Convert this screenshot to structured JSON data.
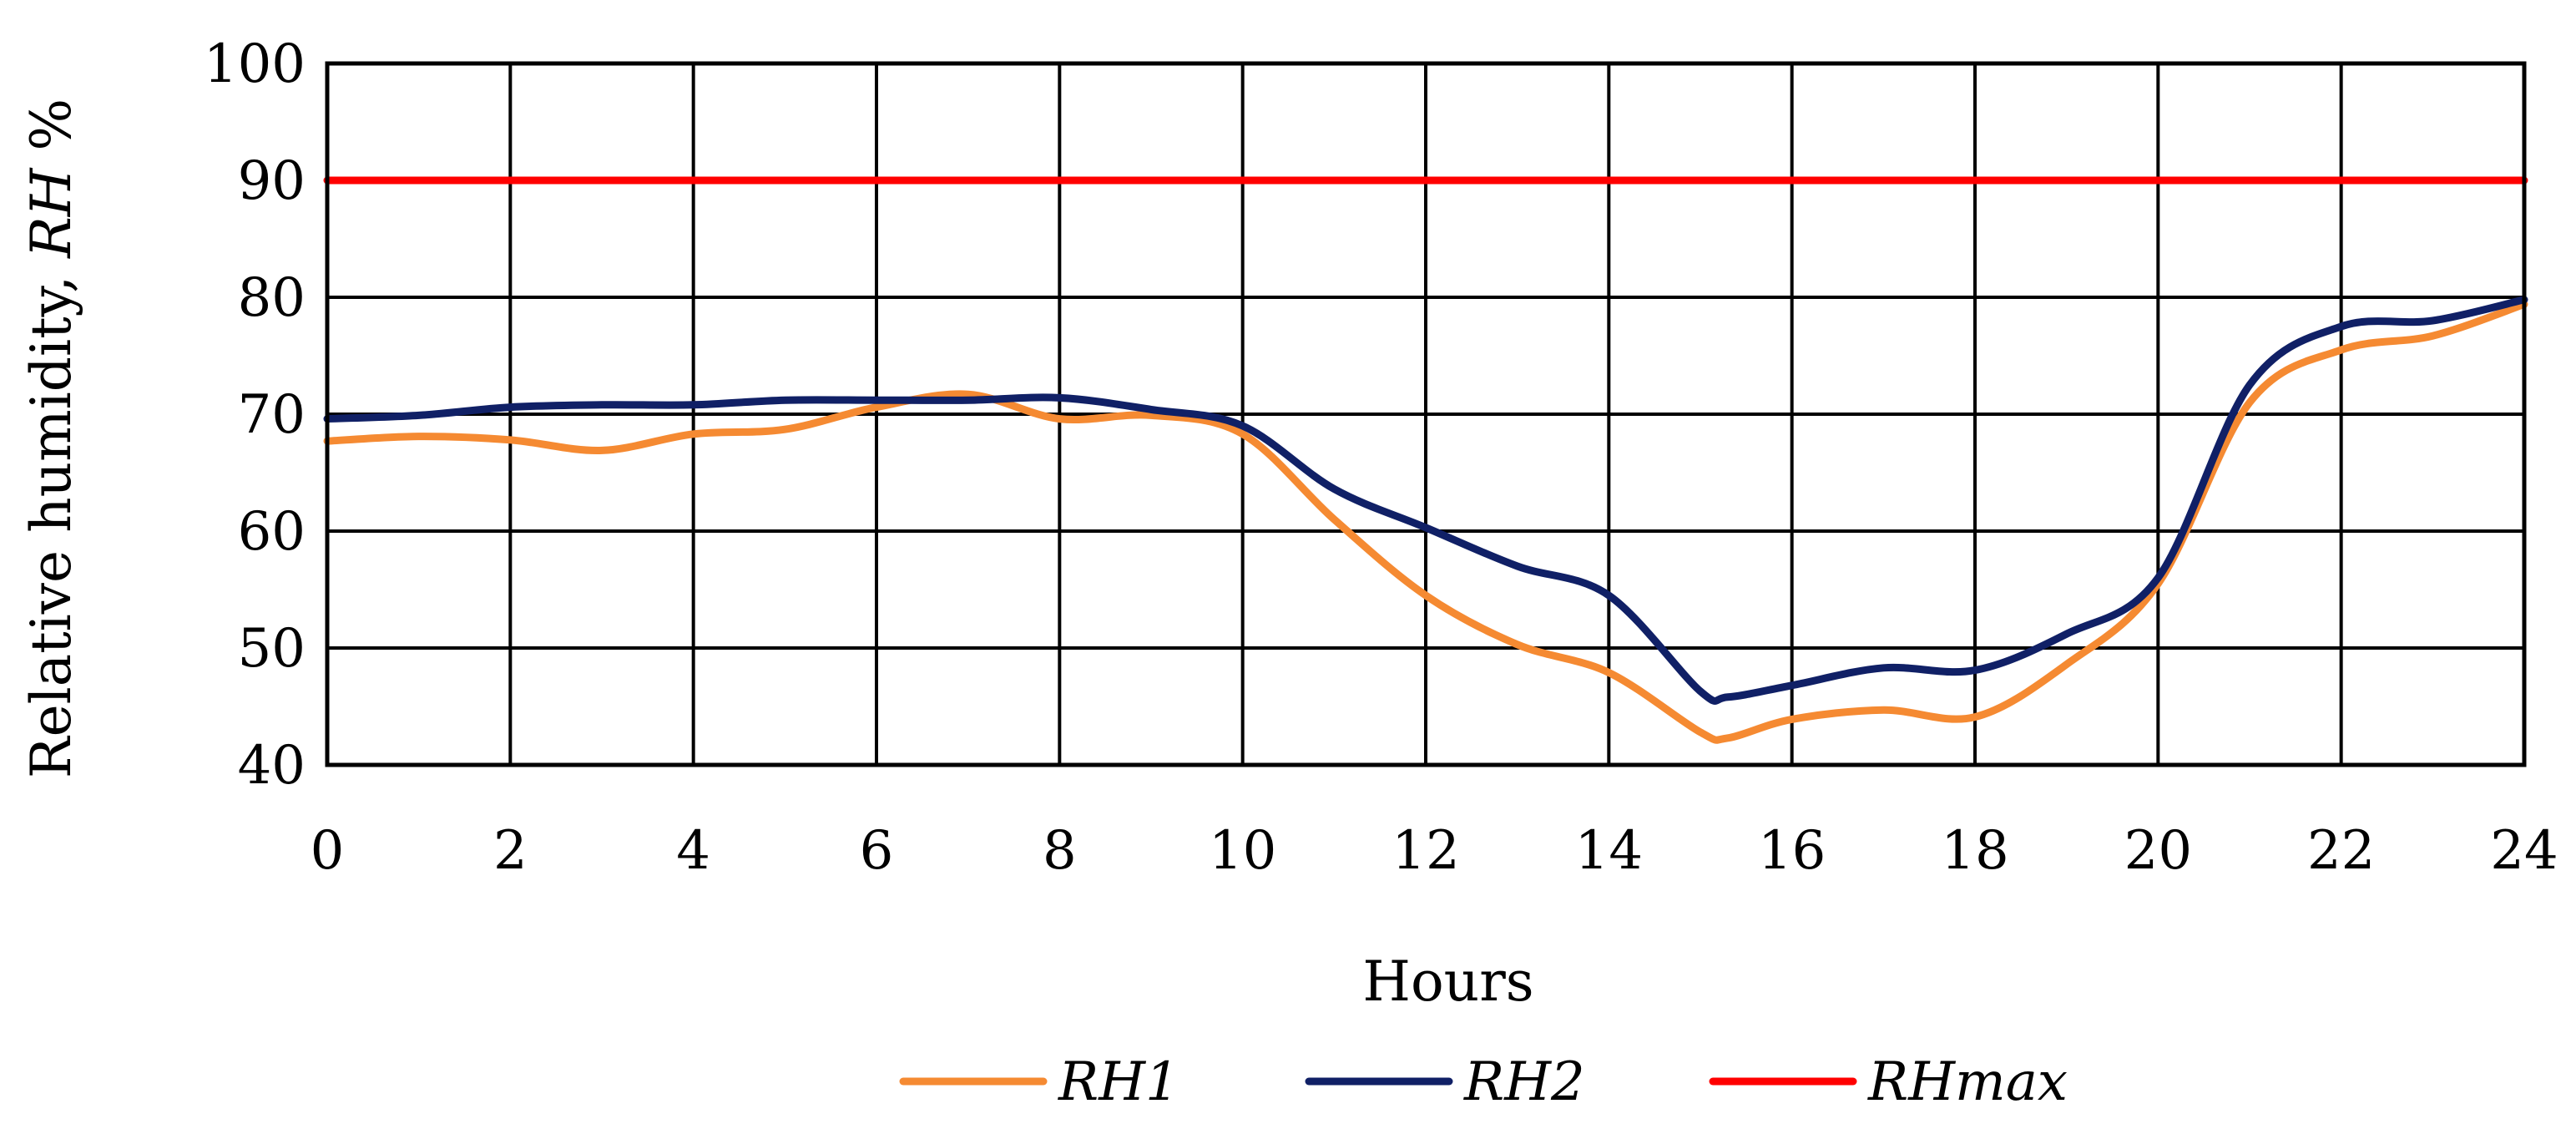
{
  "chart_data": {
    "type": "line",
    "title": "",
    "xlabel": "Hours",
    "ylabel": {
      "prefix": "Relative humidity, ",
      "italic": "RH",
      "suffix": " %"
    },
    "xlim": [
      0,
      24
    ],
    "ylim": [
      40,
      100
    ],
    "xticks": [
      0,
      2,
      4,
      6,
      8,
      10,
      12,
      14,
      16,
      18,
      20,
      22,
      24
    ],
    "yticks": [
      40,
      50,
      60,
      70,
      80,
      90,
      100
    ],
    "grid": true,
    "legend_position": "bottom-center",
    "series": [
      {
        "name": "RH1",
        "color": "#F58A32",
        "x": [
          0,
          1,
          2,
          3,
          4,
          5,
          6,
          7,
          8,
          9,
          10,
          11,
          12,
          13,
          14,
          15,
          15.3,
          16,
          17,
          18,
          19,
          20,
          21,
          22,
          23,
          24
        ],
        "y": [
          67.7,
          68.1,
          67.8,
          66.9,
          68.3,
          68.7,
          70.6,
          71.7,
          69.6,
          69.9,
          68.3,
          61.0,
          54.5,
          50.3,
          47.9,
          42.8,
          42.3,
          43.9,
          44.7,
          44.1,
          48.6,
          55.5,
          71.0,
          75.5,
          76.7,
          79.4
        ]
      },
      {
        "name": "RH2",
        "color": "#102066",
        "x": [
          0,
          1,
          2,
          3,
          4,
          5,
          6,
          7,
          8,
          9,
          10,
          11,
          12,
          13,
          14,
          15,
          15.3,
          16,
          17,
          18,
          19,
          20,
          21,
          22,
          23,
          24
        ],
        "y": [
          69.6,
          69.9,
          70.6,
          70.8,
          70.8,
          71.2,
          71.2,
          71.2,
          71.4,
          70.4,
          69.0,
          63.6,
          60.3,
          57.0,
          54.5,
          46.3,
          45.8,
          46.8,
          48.3,
          48.1,
          51.2,
          56.0,
          72.5,
          77.5,
          78.0,
          79.8
        ]
      },
      {
        "name": "RHmax",
        "color": "#FF0000",
        "x": [
          0,
          24
        ],
        "y": [
          90,
          90
        ]
      }
    ]
  }
}
